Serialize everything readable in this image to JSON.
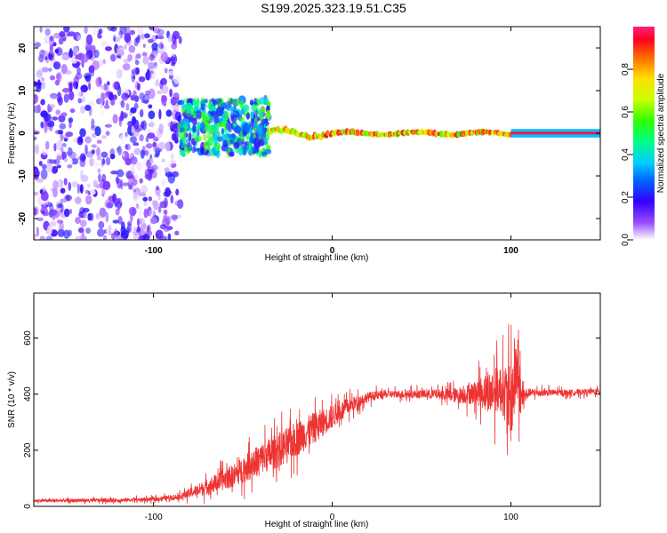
{
  "title": "S199.2025.323.19.51.C35",
  "chart_data": [
    {
      "type": "heatmap",
      "xlabel": "Height of straight line (km)",
      "ylabel": "Frequency (Hz)",
      "xlim": [
        -167,
        150
      ],
      "ylim": [
        -25,
        25
      ],
      "xticks": [
        -100,
        0,
        100
      ],
      "yticks": [
        20,
        10,
        0,
        -10,
        -20
      ],
      "colorbar": {
        "label": "Normalized spectral amplitude",
        "range": [
          0,
          1
        ],
        "ticks": [
          0.0,
          0.2,
          0.4,
          0.6,
          0.8
        ]
      },
      "description_regions": [
        {
          "x_range": [
            -167,
            -85
          ],
          "freq_range": [
            -25,
            25
          ],
          "amplitude": 0.15
        },
        {
          "x_range": [
            -85,
            -35
          ],
          "freq_range": [
            -5,
            8
          ],
          "amplitude": 0.5
        },
        {
          "x_range": [
            -35,
            100
          ],
          "freq_range": [
            -2,
            3
          ],
          "amplitude": 0.9
        },
        {
          "x_range": [
            100,
            150
          ],
          "freq_range": [
            -1,
            1
          ],
          "amplitude": 1.0
        }
      ]
    },
    {
      "type": "line",
      "xlabel": "Height of straight line (km)",
      "ylabel": "SNR (10 * v/v)",
      "xlim": [
        -167,
        150
      ],
      "ylim": [
        0,
        760
      ],
      "xticks": [
        -100,
        0,
        100
      ],
      "yticks": [
        0,
        200,
        400,
        600
      ],
      "color": "#ee3333",
      "series": [
        {
          "name": "SNR",
          "x": [
            -167,
            -120,
            -100,
            -85,
            -70,
            -55,
            -40,
            -30,
            -20,
            -10,
            0,
            10,
            20,
            30,
            40,
            60,
            70,
            80,
            90,
            95,
            100,
            103,
            106,
            110,
            130,
            150
          ],
          "y": [
            20,
            22,
            25,
            35,
            70,
            110,
            170,
            200,
            240,
            280,
            320,
            360,
            390,
            400,
            400,
            400,
            395,
            405,
            410,
            420,
            360,
            500,
            380,
            405,
            405,
            410
          ],
          "noise": [
            8,
            10,
            10,
            15,
            40,
            60,
            80,
            90,
            90,
            80,
            60,
            40,
            25,
            20,
            20,
            25,
            40,
            60,
            120,
            120,
            200,
            220,
            80,
            20,
            15,
            15
          ]
        }
      ]
    }
  ]
}
